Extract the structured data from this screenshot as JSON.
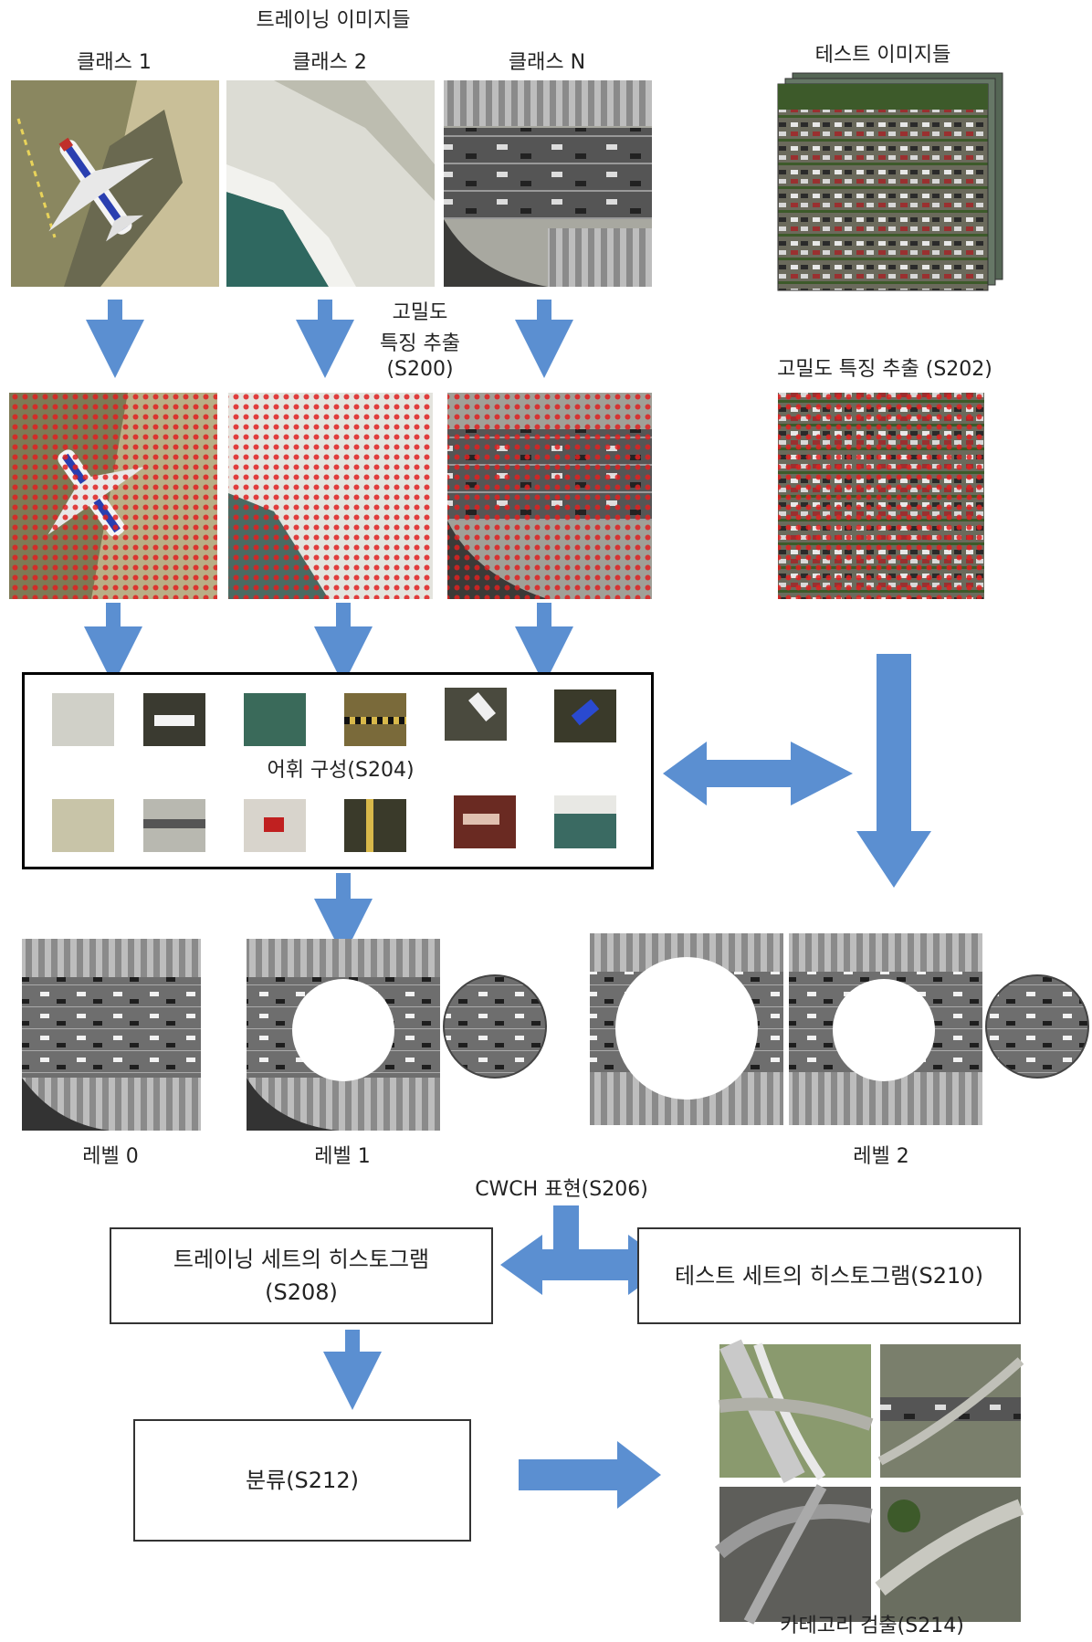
{
  "training": {
    "title": "트레이닝 이미지들",
    "classes": [
      "클래스 1",
      "클래스 2",
      "클래스 N"
    ]
  },
  "test": {
    "title": "테스트 이미지들",
    "feature_label": "고밀도 특징 추출 (S202)"
  },
  "dense_feature": {
    "line1": "고밀도",
    "line2": "특징 추출",
    "line3": "(S200)"
  },
  "vocabulary": {
    "label": "어휘 구성(S204)"
  },
  "levels": [
    "레벨 0",
    "레벨 1",
    "레벨 2"
  ],
  "cwch_label": "CWCH 표현(S206)",
  "boxes": {
    "train_hist_line1": "트레이닝 세트의 히스토그램",
    "train_hist_line2": "(S208)",
    "test_hist": "테스트 세트의 히스토그램(S210)",
    "classify": "분류(S212)"
  },
  "category_detect": "카테고리 검출(S214)",
  "colors": {
    "arrow": "#5b8fd1",
    "grid_dot": "#e02020"
  }
}
